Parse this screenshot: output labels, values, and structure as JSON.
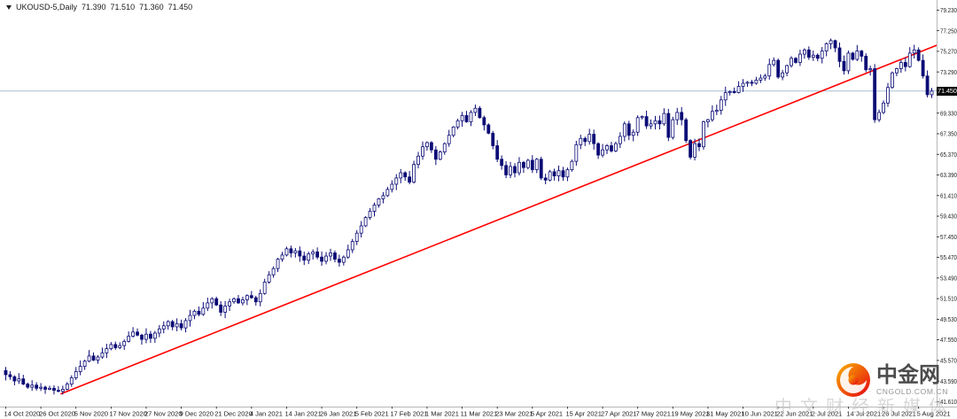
{
  "chart_header": {
    "symbol": "UKOUSD-5,Daily",
    "open": "71.390",
    "high": "71.510",
    "low": "71.360",
    "close": "71.450"
  },
  "watermark": {
    "brand": "中金网",
    "domain": "CNGOLD.COM.CN",
    "tagline": "中文财经新媒体"
  },
  "colors": {
    "candle": "#0b0b76",
    "bull_fill": "#ffffff",
    "bear_fill": "#0b0b76",
    "trendline": "#ff0000",
    "price_line": "#a9bdd6",
    "badge_bg": "#000000",
    "badge_text": "#ffffff",
    "axis_text": "#1a1a1a",
    "axis_line": "#b8b8b8"
  },
  "chart_data": {
    "type": "candlestick",
    "title": "UKOUSD-5,Daily",
    "symbol": "UKOUSD",
    "timeframe": "Daily",
    "grid": false,
    "legend": null,
    "ylim": [
      41.5,
      79.9
    ],
    "y_tick_step": 1.98,
    "current_price": 71.45,
    "current_price_label": "71.450",
    "last_bar": {
      "open": 71.39,
      "high": 71.51,
      "low": 71.36,
      "close": 71.45
    },
    "y_tick_labels": [
      "79.230",
      "77.250",
      "75.270",
      "73.290",
      "71.310",
      "69.330",
      "67.350",
      "65.370",
      "63.390",
      "61.410",
      "59.430",
      "57.450",
      "55.470",
      "53.490",
      "51.510",
      "49.530",
      "47.550",
      "45.570",
      "43.590",
      "41.610"
    ],
    "x_tick_labels": [
      "14 Oct 2020",
      "26 Oct 2020",
      "5 Nov 2020",
      "17 Nov 2020",
      "27 Nov 2020",
      "9 Dec 2020",
      "21 Dec 2020",
      "4 Jan 2021",
      "14 Jan 2021",
      "26 Jan 2021",
      "5 Feb 2021",
      "17 Feb 2021",
      "1 Mar 2021",
      "11 Mar 2021",
      "23 Mar 2021",
      "5 Apr 2021",
      "15 Apr 2021",
      "27 Apr 2021",
      "7 May 2021",
      "19 May 2021",
      "31 May 2021",
      "10 Jun 2021",
      "22 Jun 2021",
      "2 Jul 2021",
      "14 Jul 2021",
      "26 Jul 2021",
      "5 Aug 2021"
    ],
    "bars_per_x_tick": 8,
    "closes": [
      44.2,
      44.0,
      43.6,
      43.8,
      43.3,
      43.0,
      43.2,
      42.9,
      43.0,
      42.8,
      42.9,
      42.7,
      42.6,
      42.8,
      43.3,
      43.9,
      44.5,
      45.0,
      45.5,
      46.0,
      45.6,
      45.9,
      46.3,
      46.7,
      47.1,
      46.8,
      47.0,
      47.4,
      47.9,
      48.3,
      48.0,
      47.6,
      48.1,
      47.7,
      48.2,
      48.6,
      48.9,
      49.3,
      48.8,
      49.1,
      48.7,
      49.4,
      49.9,
      50.3,
      50.0,
      50.6,
      51.1,
      51.5,
      50.9,
      50.2,
      50.8,
      51.2,
      51.5,
      51.1,
      51.4,
      51.8,
      51.6,
      51.2,
      52.0,
      53.1,
      53.8,
      54.4,
      55.3,
      55.7,
      56.3,
      55.9,
      56.1,
      55.6,
      55.2,
      55.8,
      56.0,
      55.5,
      55.1,
      55.6,
      55.9,
      55.3,
      55.0,
      55.5,
      56.2,
      57.0,
      57.8,
      58.5,
      59.3,
      59.9,
      60.5,
      61.1,
      61.4,
      62.0,
      62.5,
      63.1,
      63.6,
      63.2,
      62.7,
      64.4,
      65.2,
      66.1,
      66.5,
      65.8,
      64.9,
      65.6,
      66.4,
      67.2,
      68.0,
      68.6,
      69.1,
      68.5,
      69.4,
      69.8,
      68.9,
      68.2,
      67.4,
      66.2,
      64.9,
      64.3,
      63.4,
      64.2,
      63.6,
      64.6,
      64.1,
      64.8,
      63.9,
      64.9,
      63.1,
      62.9,
      63.7,
      63.3,
      63.8,
      63.2,
      63.9,
      64.7,
      66.3,
      66.9,
      66.6,
      67.3,
      66.4,
      65.3,
      65.8,
      66.2,
      65.7,
      66.4,
      67.1,
      68.3,
      67.2,
      67.5,
      68.9,
      69.0,
      68.1,
      68.3,
      68.6,
      68.3,
      69.3,
      67.0,
      68.7,
      69.4,
      68.7,
      66.7,
      65.1,
      66.4,
      66.1,
      68.5,
      68.7,
      69.5,
      69.6,
      70.6,
      71.3,
      71.4,
      71.3,
      71.9,
      72.2,
      72.3,
      72.2,
      72.5,
      72.7,
      72.9,
      74.0,
      74.4,
      72.8,
      73.2,
      73.9,
      74.6,
      74.2,
      75.0,
      75.4,
      74.7,
      74.9,
      74.6,
      75.3,
      76.0,
      76.3,
      75.6,
      74.3,
      73.4,
      75.1,
      74.5,
      75.3,
      74.8,
      73.5,
      73.6,
      68.7,
      69.4,
      70.3,
      71.8,
      73.2,
      73.6,
      74.2,
      73.8,
      75.1,
      75.4,
      74.4,
      72.9,
      71.1,
      71.45
    ],
    "trendline": {
      "type": "ascending-support",
      "color": "#ff0000",
      "p1_index": 12.5,
      "p1_price": 42.35,
      "p2_index": 213,
      "p2_price": 76.0
    }
  }
}
